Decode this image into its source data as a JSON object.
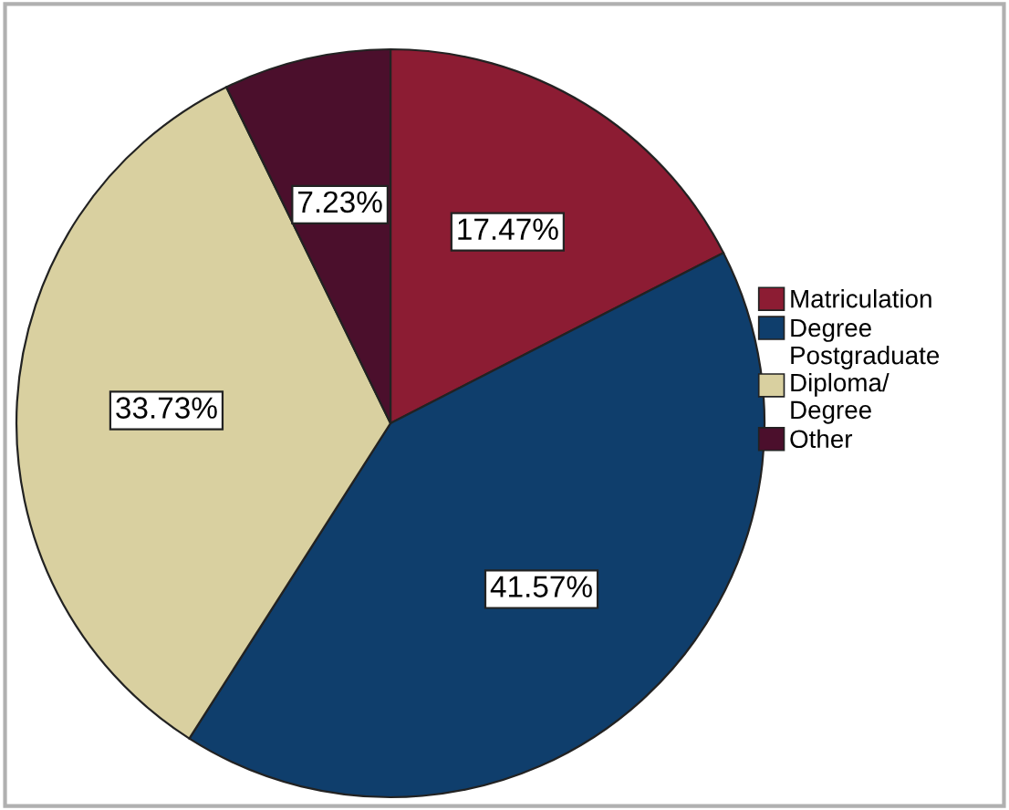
{
  "chart_data": {
    "type": "pie",
    "categories": [
      "Matriculation",
      "Degree",
      "Postgraduate\nDiploma/\nDegree",
      "Other"
    ],
    "values": [
      17.47,
      41.57,
      33.73,
      7.23
    ],
    "value_labels": [
      "17.47%",
      "41.57%",
      "33.73%",
      "7.23%"
    ],
    "colors": [
      "#8c1c33",
      "#0f3e6c",
      "#d9d0a0",
      "#4b0f2c"
    ],
    "legend": "right"
  }
}
